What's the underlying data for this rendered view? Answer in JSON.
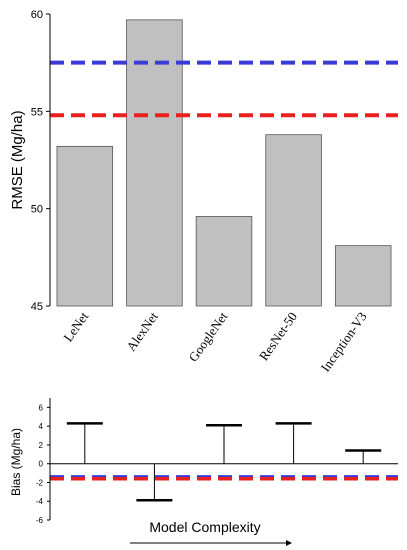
{
  "chart_data": [
    {
      "type": "bar",
      "categories": [
        "LeNet",
        "AlexNet",
        "GoogleNet",
        "ResNet-50",
        "Inception-V3"
      ],
      "values": [
        53.2,
        59.7,
        49.6,
        53.8,
        48.1
      ],
      "ylabel": "RMSE (Mg/ha)",
      "ylim": [
        45,
        60
      ],
      "yticks": [
        "45",
        "50",
        "55",
        "60"
      ],
      "reference_lines": [
        {
          "value": 57.5,
          "color": "#3a3ad6",
          "style": "dashed"
        },
        {
          "value": 54.8,
          "color": "#e8211f",
          "style": "dashed"
        }
      ],
      "bar_color": "#c0c0c0"
    },
    {
      "type": "bar",
      "categories": [
        "LeNet",
        "AlexNet",
        "GoogleNet",
        "ResNet-50",
        "Inception-V3"
      ],
      "values": [
        4.3,
        -3.9,
        4.1,
        4.3,
        1.4
      ],
      "ylabel": "Bias (Mg/ha)",
      "xlabel": "Model Complexity",
      "ylim": [
        -6,
        7
      ],
      "yticks": [
        "-6",
        "-4",
        "-2",
        "0",
        "2",
        "4",
        "6"
      ],
      "reference_lines": [
        {
          "value": -1.4,
          "color": "#3a3ad6",
          "style": "dashed"
        },
        {
          "value": -1.6,
          "color": "#e8211f",
          "style": "dashed"
        }
      ]
    }
  ]
}
